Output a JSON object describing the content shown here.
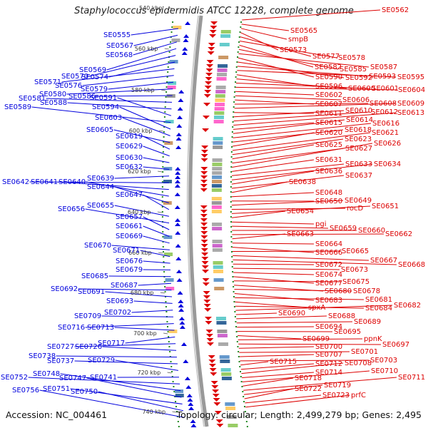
{
  "title": "Staphylococcus epidermidis ATCC 12228, complete genome",
  "footer": {
    "accession": "Accession: NC_004461",
    "topology": "Topology: circular; Length: 2,499,279 bp; Genes: 2,495"
  },
  "colors": {
    "forward": "#0000dd",
    "reverse": "#dd0000",
    "backbone": "#999999",
    "tick": "#228822"
  },
  "ticks": [
    "540 kbp",
    "560 kbp",
    "580 kbp",
    "600 kbp",
    "620 kbp",
    "640 kbp",
    "660 kbp",
    "680 kbp",
    "700 kbp",
    "720 kbp",
    "740 kbp"
  ],
  "left_labels": [
    "SE0555",
    "SE0567",
    "SE0568",
    "SE0569",
    "SE0570",
    "SE0574",
    "SE0571",
    "SE0576",
    "SE0579",
    "SE0580",
    "SE0586",
    "SE0581",
    "SE0588",
    "SE0591",
    "SE0589",
    "SE0594",
    "SE0603",
    "SE0605",
    "SE0619",
    "SE0629",
    "SE0630",
    "SE0632",
    "SE0639",
    "SE0642",
    "SE0641",
    "SE0640",
    "SE0644",
    "SE0647",
    "SE0655",
    "SE0656",
    "SE0657",
    "SE0661",
    "SE0669",
    "SE0670",
    "SE0671",
    "SE0676",
    "SE0679",
    "SE0685",
    "SE0687",
    "SE0692",
    "SE0691",
    "SE0693",
    "SE0702",
    "SE0709",
    "SE0716",
    "SE0713",
    "SE0717",
    "SE0727",
    "SE0726",
    "SE0738",
    "SE0737",
    "SE0729",
    "SE0741",
    "SE0752",
    "SE0748",
    "SE0747",
    "SE0751",
    "SE0750",
    "SE0756"
  ],
  "right_labels": [
    "SE0562",
    "SE0565",
    "smpB",
    "SE0573",
    "SE0577",
    "SE0578",
    "SE0582",
    "SE0585",
    "SE0587",
    "SE0590",
    "SE0592",
    "SE0593",
    "SE0595",
    "SE0596",
    "SE0600",
    "SE0601",
    "SE0604",
    "SE0602",
    "SE0606",
    "SE0607",
    "SE0608",
    "SE0609",
    "SE0611",
    "SE0610",
    "SE0612",
    "SE0613",
    "SE0615",
    "SE0614",
    "SE0616",
    "SE0618",
    "SE0620",
    "SE0621",
    "SE0623",
    "SE0625",
    "SE0627",
    "SE0626",
    "SE0631",
    "SE0633",
    "SE0634",
    "SE0636",
    "SE0637",
    "SE0638",
    "SE0648",
    "SE0650",
    "SE0649",
    "rocD",
    "SE0651",
    "SE0654",
    "pgi",
    "SE0659",
    "SE0660",
    "SE0662",
    "SE0663",
    "SE0664",
    "SE0666",
    "SE0665",
    "SE0667",
    "SE0668",
    "SE0672",
    "SE0673",
    "SE0674",
    "SE0677",
    "SE0675",
    "SE0680",
    "SE0678",
    "SE0683",
    "SE0681",
    "spxA",
    "SE0684",
    "SE0682",
    "SE0690",
    "SE0688",
    "SE0689",
    "SE0694",
    "SE0695",
    "SE0699",
    "ppnK",
    "SE0697",
    "SE0700",
    "SE0701",
    "SE0707",
    "SE0703",
    "SE0715",
    "SE0712",
    "SE0708",
    "SE0714",
    "SE0710",
    "SE0718",
    "SE0711",
    "SE0719",
    "SE0722",
    "SE0723",
    "prfC"
  ]
}
